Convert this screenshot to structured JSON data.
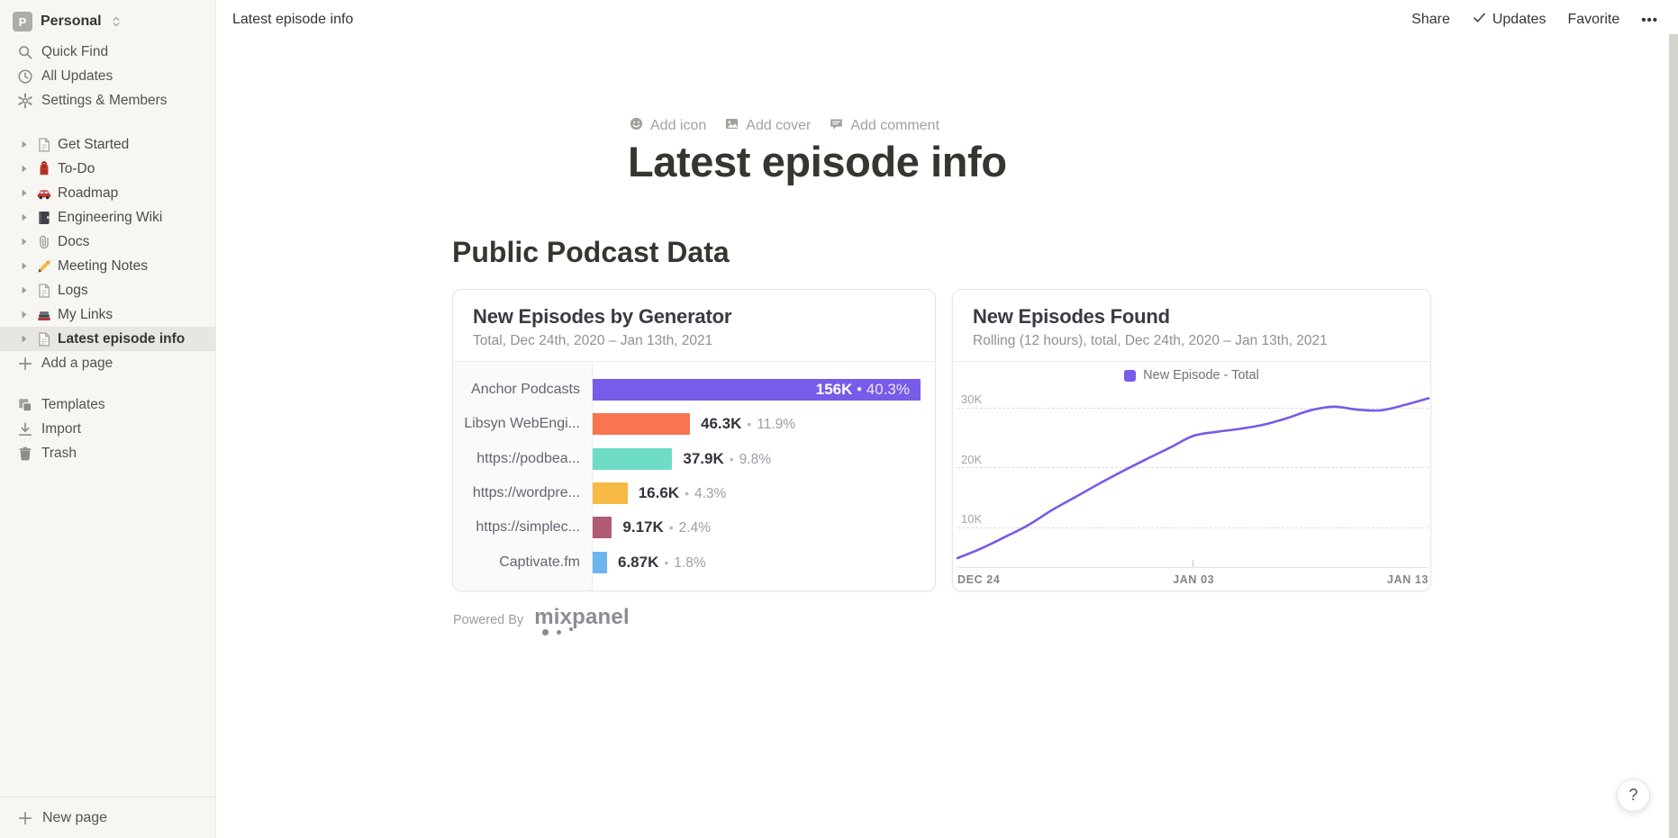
{
  "workspace": {
    "name": "Personal",
    "initial": "P"
  },
  "sidebar": {
    "top_items": [
      {
        "label": "Quick Find",
        "icon": "search"
      },
      {
        "label": "All Updates",
        "icon": "clock"
      },
      {
        "label": "Settings & Members",
        "icon": "gear"
      }
    ],
    "pages": [
      {
        "label": "Get Started",
        "icon": "page",
        "selected": false
      },
      {
        "label": "To-Do",
        "icon": "backpack",
        "selected": false
      },
      {
        "label": "Roadmap",
        "icon": "car",
        "selected": false
      },
      {
        "label": "Engineering Wiki",
        "icon": "notebook",
        "selected": false
      },
      {
        "label": "Docs",
        "icon": "paperclip",
        "selected": false
      },
      {
        "label": "Meeting Notes",
        "icon": "pencil",
        "selected": false
      },
      {
        "label": "Logs",
        "icon": "page",
        "selected": false
      },
      {
        "label": "My Links",
        "icon": "books",
        "selected": false
      },
      {
        "label": "Latest episode info",
        "icon": "page",
        "selected": true
      }
    ],
    "add_page_label": "Add a page",
    "bottom_items": [
      {
        "label": "Templates",
        "icon": "templates"
      },
      {
        "label": "Import",
        "icon": "import"
      },
      {
        "label": "Trash",
        "icon": "trash"
      }
    ],
    "new_page_label": "New page"
  },
  "topbar": {
    "breadcrumb": "Latest episode info",
    "share": "Share",
    "updates": "Updates",
    "favorite": "Favorite",
    "more": "•••"
  },
  "page": {
    "add_icon": "Add icon",
    "add_cover": "Add cover",
    "add_comment": "Add comment",
    "title": "Latest episode info",
    "section_heading": "Public Podcast Data",
    "powered_by": "Powered By",
    "mixpanel_logo": "mixpanel"
  },
  "chart_data": [
    {
      "type": "bar",
      "orientation": "horizontal",
      "title": "New Episodes by Generator",
      "subtitle": "Total, Dec 24th, 2020 – Jan 13th, 2021",
      "categories": [
        "Anchor Podcasts",
        "Libsyn WebEngi...",
        "https://podbea...",
        "https://wordpre...",
        "https://simplec...",
        "Captivate.fm"
      ],
      "values_k": [
        156,
        46.3,
        37.9,
        16.6,
        9.17,
        6.87
      ],
      "value_labels": [
        "156K",
        "46.3K",
        "37.9K",
        "16.6K",
        "9.17K",
        "6.87K"
      ],
      "percent_labels": [
        "40.3%",
        "11.9%",
        "9.8%",
        "4.3%",
        "2.4%",
        "1.8%"
      ],
      "separator": "•",
      "bar_colors": [
        "#785BE8",
        "#F97450",
        "#6FDCC7",
        "#F6BA45",
        "#B05C72",
        "#6CB4EE"
      ],
      "xlim_k": [
        0,
        164
      ],
      "value_label_position_first_bar": "inside"
    },
    {
      "type": "line",
      "title": "New Episodes Found",
      "subtitle": "Rolling (12 hours), total, Dec 24th, 2020 – Jan 13th, 2021",
      "legend": [
        {
          "label": "New Episode - Total",
          "color": "#785BE8"
        }
      ],
      "x_tick_labels": [
        "DEC 24",
        "JAN 03",
        "JAN 13"
      ],
      "y_tick_labels": [
        "10K",
        "20K",
        "30K"
      ],
      "ylim_k": [
        0,
        33
      ],
      "grid": "dashed-horizontal",
      "series": [
        {
          "name": "New Episode - Total",
          "color": "#785BE8",
          "x_days_from_dec24": [
            0,
            1,
            2,
            3,
            4,
            5,
            6,
            7,
            8,
            9,
            10,
            11,
            12,
            13,
            14,
            15,
            16,
            17,
            18,
            19,
            20
          ],
          "values_k": [
            4.8,
            6.4,
            8.3,
            10.3,
            12.8,
            15.0,
            17.2,
            19.3,
            21.3,
            23.2,
            25.2,
            25.9,
            26.4,
            27.1,
            28.2,
            29.5,
            30.1,
            29.6,
            29.5,
            30.4,
            31.5
          ]
        }
      ]
    }
  ],
  "help_label": "?"
}
